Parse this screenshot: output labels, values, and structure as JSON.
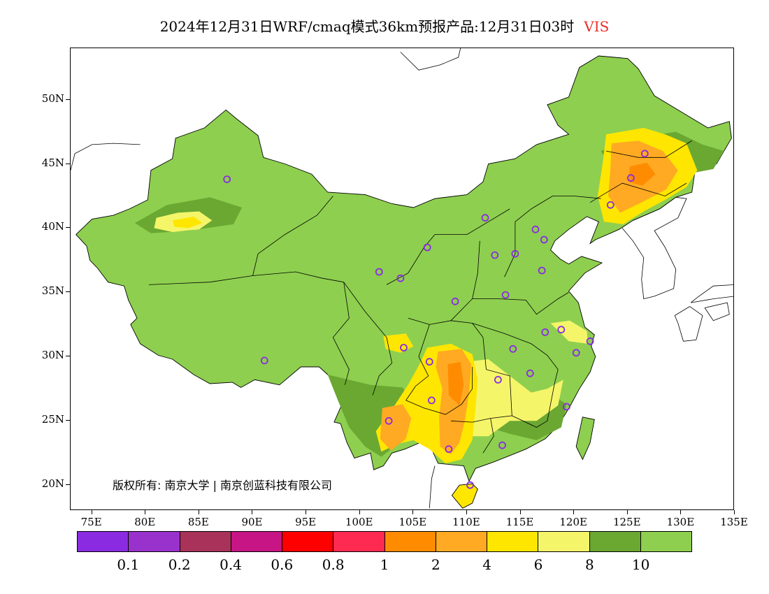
{
  "title": "2024年12月31日WRF/cmaq模式36km预报产品:12月31日03时",
  "variable": "VIS",
  "copyright": "版权所有: 南京大学 | 南京创蓝科技有限公司",
  "lat_labels": [
    "50N",
    "45N",
    "40N",
    "35N",
    "30N",
    "25N",
    "20N"
  ],
  "lon_labels": [
    "75E",
    "80E",
    "85E",
    "90E",
    "95E",
    "100E",
    "105E",
    "110E",
    "115E",
    "120E",
    "125E",
    "130E",
    "135E"
  ],
  "legend": {
    "colors": [
      "#8a2be2",
      "#9932cc",
      "#a8325a",
      "#c71585",
      "#ff0000",
      "#ff2a52",
      "#ff8c00",
      "#ffaa22",
      "#ffe600",
      "#f5f56a",
      "#6aa832",
      "#8ecf4f"
    ],
    "labels": [
      "0.1",
      "0.2",
      "0.4",
      "0.6",
      "0.8",
      "1",
      "2",
      "4",
      "6",
      "8",
      "10"
    ]
  },
  "colors": {
    "land_default": "#8ecf4f",
    "dark_green": "#6aa832",
    "yellow": "#ffe600",
    "light_yellow": "#f5f56a",
    "orange": "#ffaa22",
    "dark_orange": "#ff8c00",
    "station": "#8a2be2"
  },
  "stations": [
    {
      "lon": 87.6,
      "lat": 43.8
    },
    {
      "lon": 91.1,
      "lat": 29.7
    },
    {
      "lon": 101.8,
      "lat": 36.6
    },
    {
      "lon": 103.8,
      "lat": 36.1
    },
    {
      "lon": 106.3,
      "lat": 38.5
    },
    {
      "lon": 108.9,
      "lat": 34.3
    },
    {
      "lon": 104.1,
      "lat": 30.7
    },
    {
      "lon": 106.5,
      "lat": 29.6
    },
    {
      "lon": 106.7,
      "lat": 26.6
    },
    {
      "lon": 102.7,
      "lat": 25.0
    },
    {
      "lon": 108.3,
      "lat": 22.8
    },
    {
      "lon": 110.3,
      "lat": 20.0
    },
    {
      "lon": 113.3,
      "lat": 23.1
    },
    {
      "lon": 112.9,
      "lat": 28.2
    },
    {
      "lon": 114.3,
      "lat": 30.6
    },
    {
      "lon": 115.9,
      "lat": 28.7
    },
    {
      "lon": 117.3,
      "lat": 31.9
    },
    {
      "lon": 118.8,
      "lat": 32.1
    },
    {
      "lon": 120.2,
      "lat": 30.3
    },
    {
      "lon": 121.5,
      "lat": 31.2
    },
    {
      "lon": 119.3,
      "lat": 26.1
    },
    {
      "lon": 113.6,
      "lat": 34.8
    },
    {
      "lon": 117.0,
      "lat": 36.7
    },
    {
      "lon": 114.5,
      "lat": 38.0
    },
    {
      "lon": 112.6,
      "lat": 37.9
    },
    {
      "lon": 111.7,
      "lat": 40.8
    },
    {
      "lon": 116.4,
      "lat": 39.9
    },
    {
      "lon": 117.2,
      "lat": 39.1
    },
    {
      "lon": 123.4,
      "lat": 41.8
    },
    {
      "lon": 125.3,
      "lat": 43.9
    },
    {
      "lon": 126.6,
      "lat": 45.8
    }
  ]
}
